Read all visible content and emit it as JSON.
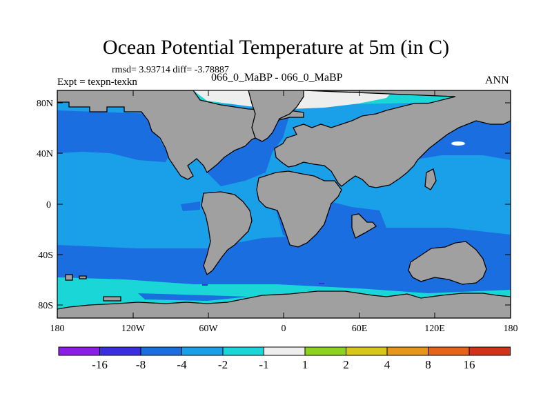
{
  "title": "Ocean Potential Temperature at 5m (in C)",
  "stats": "rmsd= 3.93714 diff= -3.78887",
  "expt": "Expt = texpn-texkn",
  "case": "066_0_MaBP - 066_0_MaBP",
  "season": "ANN",
  "lat_labels": [
    "80N",
    "40N",
    "0",
    "40S",
    "80S"
  ],
  "lon_labels": [
    "180",
    "120W",
    "60W",
    "0",
    "60E",
    "120E",
    "180"
  ],
  "colorbar": {
    "labels": [
      "-16",
      "-8",
      "-4",
      "-2",
      "-1",
      "1",
      "2",
      "4",
      "8",
      "16"
    ],
    "colors": [
      "#8a1ee6",
      "#3a2ee0",
      "#1a6ee0",
      "#1aa0e8",
      "#1ad6d6",
      "#eeeeee",
      "#8cd21e",
      "#d6c81a",
      "#e6961a",
      "#e6641a",
      "#d2321a"
    ]
  },
  "colors": {
    "land": "#a0a0a0",
    "deep_blue": "#1a6ee0",
    "mid_blue": "#1aa0e8",
    "cyan": "#1ad6d6",
    "white": "#eeeeee"
  }
}
